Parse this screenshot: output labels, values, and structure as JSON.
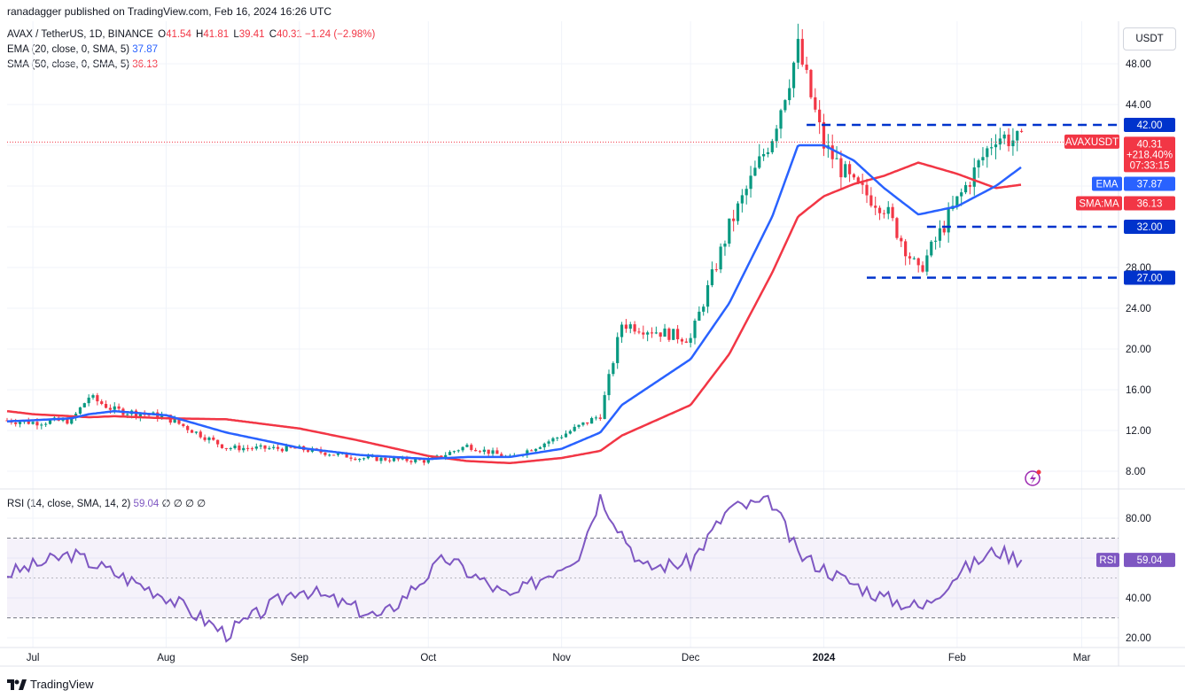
{
  "publish_line": "ranadagger published on TradingView.com, Feb 16, 2024 16:26 UTC",
  "legend": {
    "symbol_line": "AVAX / TetherUS, 1D, BINANCE",
    "open_label": "O",
    "open": "41.54",
    "high_label": "H",
    "high": "41.81",
    "low_label": "L",
    "low": "39.41",
    "close_label": "C",
    "close": "40.31",
    "change": "−1.24 (−2.98%)",
    "ema_line": "EMA (20, close, 0, SMA, 5)",
    "ema_value": "37.87",
    "sma_line": "SMA (50, close, 0, SMA, 5)",
    "sma_value": "36.13",
    "rsi_line": "RSI (14, close, SMA, 14, 2)",
    "rsi_value": "59.04",
    "rsi_extra": "∅ ∅ ∅ ∅"
  },
  "currency_button": "USDT",
  "price_axis": [
    "48.00",
    "44.00",
    "40.00",
    "36.00",
    "32.00",
    "28.00",
    "24.00",
    "20.00",
    "16.00",
    "12.00",
    "8.00"
  ],
  "rsi_axis": [
    "80.00",
    "60.00",
    "40.00",
    "20.00"
  ],
  "time_axis": [
    "Jul",
    "Aug",
    "Sep",
    "Oct",
    "Nov",
    "Dec",
    "2024",
    "Feb",
    "Mar"
  ],
  "tags": {
    "level_42": "42.00",
    "level_32": "32.00",
    "level_27": "27.00",
    "symbol": "AVAXUSDT",
    "price": "40.31",
    "pct": "+218.40%",
    "countdown": "07:33:15",
    "ema_label": "EMA",
    "ema_value": "37.87",
    "sma_label": "SMA:MA",
    "sma_value": "36.13",
    "rsi_label": "RSI",
    "rsi_value": "59.04"
  },
  "brand": "TradingView",
  "colors": {
    "up": "#089981",
    "down": "#f23645",
    "ema": "#2962ff",
    "sma": "#f23645",
    "rsi": "#7e57c2",
    "level": "#0033cc"
  },
  "chart_data": [
    {
      "type": "line",
      "title": "AVAX / TetherUS, 1D, BINANCE",
      "x": [
        "Jun 25",
        "Jul 1",
        "Jul 10",
        "Jul 14",
        "Jul 20",
        "Aug 1",
        "Aug 15",
        "Sep 1",
        "Sep 15",
        "Oct 1",
        "Oct 10",
        "Oct 20",
        "Nov 1",
        "Nov 10",
        "Nov 15",
        "Dec 1",
        "Dec 10",
        "Dec 20",
        "Dec 26",
        "Jan 1",
        "Jan 8",
        "Jan 15",
        "Jan 23",
        "Feb 1",
        "Feb 10",
        "Feb 16"
      ],
      "series": [
        {
          "name": "AVAXUSDT",
          "values": [
            13.0,
            12.8,
            13.0,
            15.3,
            14.0,
            13.3,
            10.3,
            10.2,
            9.3,
            9.0,
            10.5,
            9.3,
            11.5,
            13.5,
            22.5,
            21.0,
            32.0,
            41.0,
            49.5,
            40.0,
            36.0,
            34.0,
            27.5,
            34.5,
            41.0,
            40.31
          ]
        },
        {
          "name": "EMA",
          "values": [
            12.9,
            13.0,
            13.2,
            13.6,
            13.9,
            13.5,
            11.8,
            10.3,
            9.6,
            9.2,
            9.4,
            9.4,
            10.2,
            11.8,
            14.5,
            19.0,
            24.5,
            33.0,
            40.0,
            40.0,
            38.5,
            35.8,
            33.2,
            34.0,
            36.0,
            37.87
          ]
        },
        {
          "name": "SMA:MA",
          "values": [
            13.9,
            13.6,
            13.4,
            13.3,
            13.4,
            13.2,
            13.1,
            12.2,
            11.0,
            9.5,
            9.0,
            8.8,
            9.3,
            10.0,
            11.5,
            14.5,
            19.5,
            27.5,
            33.0,
            35.0,
            36.2,
            37.0,
            38.3,
            37.2,
            35.8,
            36.13
          ]
        }
      ],
      "ylim": [
        6,
        51
      ],
      "levels": [
        42.0,
        32.0,
        27.0
      ],
      "xlabel": "",
      "ylabel": "",
      "grid": true
    },
    {
      "type": "line",
      "title": "RSI (14, close, SMA, 14, 2)",
      "x": [
        "Jun 25",
        "Jul 10",
        "Aug 1",
        "Aug 15",
        "Sep 1",
        "Sep 20",
        "Oct 5",
        "Oct 20",
        "Nov 5",
        "Nov 10",
        "Nov 20",
        "Dec 1",
        "Dec 10",
        "Dec 20",
        "Dec 26",
        "Jan 5",
        "Jan 15",
        "Jan 24",
        "Feb 1",
        "Feb 10",
        "Feb 16"
      ],
      "series": [
        {
          "name": "RSI",
          "values": [
            52,
            62,
            41,
            22,
            45,
            30,
            60,
            40,
            62,
            91,
            55,
            58,
            85,
            88,
            62,
            50,
            40,
            35,
            52,
            64,
            59.04
          ]
        }
      ],
      "bands": [
        30,
        50,
        70
      ],
      "ylim": [
        15,
        95
      ]
    }
  ]
}
